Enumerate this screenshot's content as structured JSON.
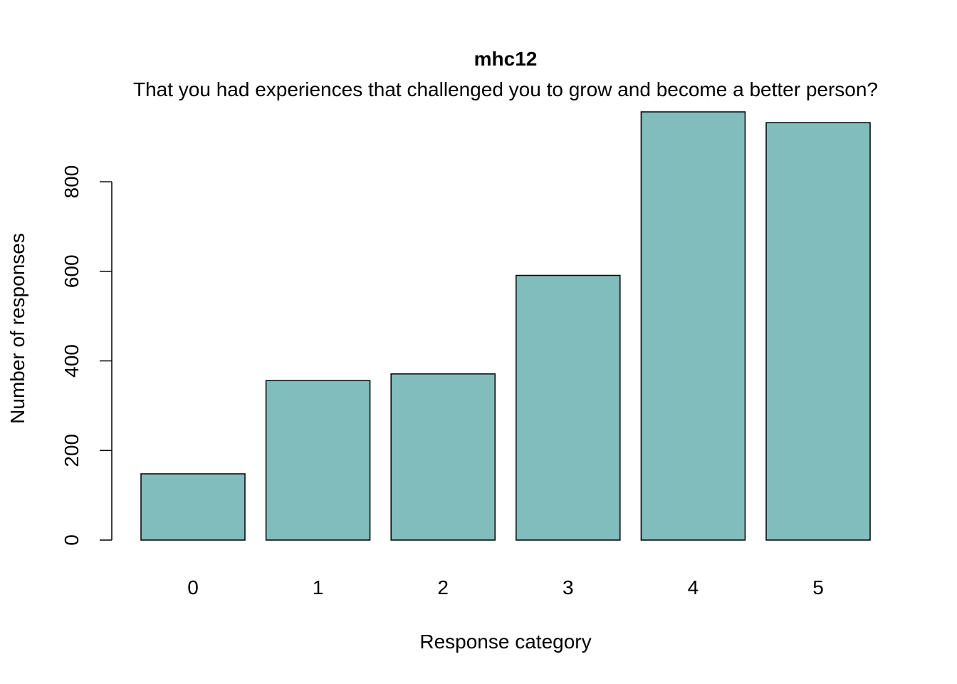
{
  "chart_data": {
    "type": "bar",
    "title": "mhc12",
    "subtitle": "That you had experiences that challenged you to grow and become a better person?",
    "xlabel": "Response category",
    "ylabel": "Number of responses",
    "categories": [
      "0",
      "1",
      "2",
      "3",
      "4",
      "5"
    ],
    "values": [
      148,
      356,
      371,
      591,
      956,
      932
    ],
    "yticks": [
      0,
      200,
      400,
      600,
      800
    ],
    "ylim": [
      0,
      956
    ],
    "bar_color": "#80bdbc",
    "grid": false
  }
}
